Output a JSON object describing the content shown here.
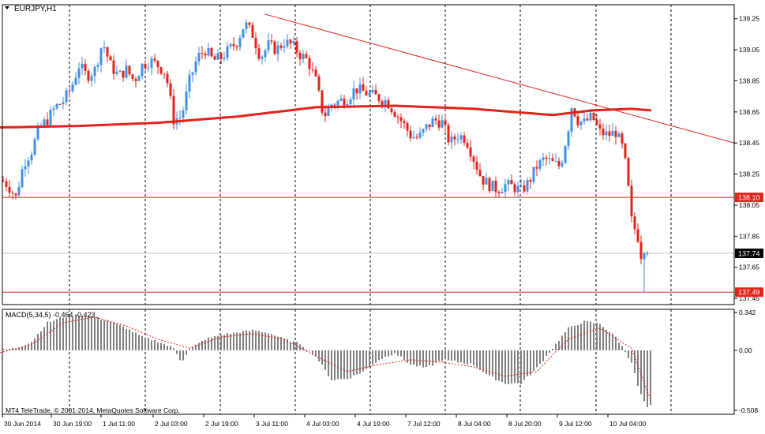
{
  "header": {
    "symbol_label": "EURJPY,H1",
    "menu_arrow": "triangle-down"
  },
  "price_axis": {
    "ticks": [
      "139.25",
      "139.05",
      "138.85",
      "138.65",
      "138.45",
      "138.25",
      "138.05",
      "137.85",
      "137.65",
      "137.45"
    ],
    "tick_values": [
      139.25,
      139.05,
      138.85,
      138.65,
      138.45,
      138.25,
      138.05,
      137.85,
      137.65,
      137.45
    ],
    "range": [
      137.41,
      139.34
    ],
    "markers": [
      {
        "label": "138.10",
        "value": 138.1,
        "color": "#e2231a",
        "text_color": "#ffffff"
      },
      {
        "label": "137.74",
        "value": 137.74,
        "color": "#000000",
        "text_color": "#ffffff"
      },
      {
        "label": "137.49",
        "value": 137.49,
        "color": "#e2231a",
        "text_color": "#ffffff"
      }
    ]
  },
  "time_axis": {
    "labels": [
      "30 Jun 2014",
      "30 Jun 19:00",
      "1 Jul 11:00",
      "2 Jul 03:00",
      "2 Jul 19:00",
      "3 Jul 11:00",
      "4 Jul 03:00",
      "4 Jul 19:00",
      "7 Jul 12:00",
      "8 Jul 04:00",
      "8 Jul 20:00",
      "9 Jul 12:00",
      "10 Jul 04:00"
    ]
  },
  "indicator": {
    "label": "MACD(5,34,5) -0.464 -0.423",
    "ticks": [
      "0.342",
      "0.00",
      "-0.508"
    ],
    "tick_values": [
      0.342,
      0.0,
      -0.508
    ]
  },
  "copyright": "MT4 TeleTrade, © 2001-2014, MetaQuotes Software Corp.",
  "colors": {
    "bull": "#3f8fe6",
    "bear": "#e2231a",
    "ma": "#e2231a",
    "grid": "#000000",
    "histogram": "#808080",
    "signal": "#e2231a"
  },
  "chart_data": [
    {
      "type": "candlestick",
      "title": "EURJPY,H1",
      "series": [
        {
          "name": "price",
          "path": [
            [
              0,
              138.22
            ],
            [
              10,
              138.18
            ],
            [
              20,
              138.1
            ],
            [
              30,
              138.32
            ],
            [
              40,
              138.4
            ],
            [
              50,
              138.55
            ],
            [
              60,
              138.6
            ],
            [
              70,
              138.68
            ],
            [
              80,
              138.72
            ],
            [
              90,
              138.8
            ],
            [
              100,
              138.95
            ],
            [
              110,
              138.88
            ],
            [
              120,
              138.92
            ],
            [
              130,
              139.1
            ],
            [
              140,
              138.95
            ],
            [
              150,
              138.88
            ],
            [
              160,
              138.92
            ],
            [
              170,
              138.85
            ],
            [
              180,
              138.95
            ],
            [
              190,
              138.98
            ],
            [
              200,
              138.95
            ],
            [
              210,
              138.9
            ],
            [
              220,
              138.6
            ],
            [
              230,
              138.62
            ],
            [
              240,
              138.85
            ],
            [
              250,
              139.0
            ],
            [
              260,
              139.05
            ],
            [
              270,
              138.98
            ],
            [
              280,
              139.0
            ],
            [
              290,
              139.05
            ],
            [
              300,
              139.1
            ],
            [
              310,
              139.22
            ],
            [
              320,
              139.15
            ],
            [
              330,
              139.0
            ],
            [
              340,
              139.08
            ],
            [
              350,
              139.05
            ],
            [
              360,
              139.1
            ],
            [
              370,
              139.08
            ],
            [
              380,
              139.02
            ],
            [
              390,
              138.98
            ],
            [
              400,
              138.85
            ],
            [
              410,
              138.62
            ],
            [
              420,
              138.7
            ],
            [
              430,
              138.72
            ],
            [
              440,
              138.74
            ],
            [
              450,
              138.8
            ],
            [
              460,
              138.78
            ],
            [
              470,
              138.76
            ],
            [
              480,
              138.74
            ],
            [
              490,
              138.72
            ],
            [
              500,
              138.65
            ],
            [
              510,
              138.58
            ],
            [
              520,
              138.5
            ],
            [
              530,
              138.48
            ],
            [
              540,
              138.55
            ],
            [
              550,
              138.6
            ],
            [
              560,
              138.58
            ],
            [
              570,
              138.45
            ],
            [
              580,
              138.5
            ],
            [
              590,
              138.48
            ],
            [
              600,
              138.35
            ],
            [
              610,
              138.22
            ],
            [
              620,
              138.18
            ],
            [
              630,
              138.15
            ],
            [
              640,
              138.18
            ],
            [
              650,
              138.17
            ],
            [
              660,
              138.14
            ],
            [
              670,
              138.2
            ],
            [
              680,
              138.3
            ],
            [
              690,
              138.35
            ],
            [
              700,
              138.32
            ],
            [
              710,
              138.3
            ],
            [
              720,
              138.55
            ],
            [
              725,
              138.72
            ],
            [
              730,
              138.6
            ],
            [
              740,
              138.58
            ],
            [
              750,
              138.62
            ],
            [
              760,
              138.52
            ],
            [
              770,
              138.5
            ],
            [
              780,
              138.52
            ],
            [
              790,
              138.4
            ],
            [
              795,
              138.2
            ],
            [
              800,
              137.95
            ],
            [
              810,
              137.82
            ],
            [
              815,
              137.6
            ],
            [
              820,
              137.74
            ]
          ]
        },
        {
          "name": "moving-average",
          "path": [
            [
              0,
              138.55
            ],
            [
              100,
              138.56
            ],
            [
              200,
              138.58
            ],
            [
              300,
              138.62
            ],
            [
              350,
              138.65
            ],
            [
              400,
              138.68
            ],
            [
              500,
              138.69
            ],
            [
              600,
              138.67
            ],
            [
              650,
              138.65
            ],
            [
              700,
              138.63
            ],
            [
              750,
              138.66
            ],
            [
              800,
              138.67
            ],
            [
              825,
              138.66
            ]
          ]
        },
        {
          "name": "trendline",
          "path": [
            [
              335,
              139.28
            ],
            [
              930,
              138.45
            ]
          ]
        }
      ]
    },
    {
      "type": "bar",
      "title": "MACD(5,34,5) -0.464 -0.423",
      "ylim": [
        -0.508,
        0.342
      ],
      "series": [
        {
          "name": "histogram",
          "path": [
            [
              0,
              0.0
            ],
            [
              20,
              0.02
            ],
            [
              40,
              0.08
            ],
            [
              60,
              0.25
            ],
            [
              80,
              0.3
            ],
            [
              100,
              0.32
            ],
            [
              120,
              0.3
            ],
            [
              140,
              0.26
            ],
            [
              160,
              0.2
            ],
            [
              180,
              0.12
            ],
            [
              200,
              0.08
            ],
            [
              220,
              0.02
            ],
            [
              230,
              -0.1
            ],
            [
              240,
              0.01
            ],
            [
              260,
              0.1
            ],
            [
              280,
              0.14
            ],
            [
              300,
              0.16
            ],
            [
              320,
              0.18
            ],
            [
              340,
              0.16
            ],
            [
              360,
              0.1
            ],
            [
              380,
              0.06
            ],
            [
              400,
              -0.05
            ],
            [
              420,
              -0.25
            ],
            [
              440,
              -0.24
            ],
            [
              460,
              -0.18
            ],
            [
              480,
              -0.08
            ],
            [
              500,
              -0.02
            ],
            [
              520,
              -0.12
            ],
            [
              540,
              -0.15
            ],
            [
              560,
              -0.08
            ],
            [
              580,
              -0.1
            ],
            [
              600,
              -0.12
            ],
            [
              620,
              -0.22
            ],
            [
              640,
              -0.28
            ],
            [
              660,
              -0.28
            ],
            [
              680,
              -0.15
            ],
            [
              700,
              0.02
            ],
            [
              720,
              0.2
            ],
            [
              740,
              0.26
            ],
            [
              760,
              0.24
            ],
            [
              780,
              0.12
            ],
            [
              800,
              -0.1
            ],
            [
              810,
              -0.35
            ],
            [
              820,
              -0.49
            ],
            [
              825,
              -0.464
            ]
          ]
        },
        {
          "name": "signal",
          "path": [
            [
              0,
              -0.02
            ],
            [
              40,
              0.05
            ],
            [
              80,
              0.25
            ],
            [
              120,
              0.3
            ],
            [
              160,
              0.22
            ],
            [
              200,
              0.1
            ],
            [
              240,
              0.02
            ],
            [
              280,
              0.12
            ],
            [
              320,
              0.15
            ],
            [
              360,
              0.1
            ],
            [
              400,
              -0.05
            ],
            [
              440,
              -0.18
            ],
            [
              480,
              -0.12
            ],
            [
              520,
              -0.08
            ],
            [
              560,
              -0.1
            ],
            [
              600,
              -0.14
            ],
            [
              640,
              -0.22
            ],
            [
              680,
              -0.18
            ],
            [
              720,
              0.1
            ],
            [
              760,
              0.2
            ],
            [
              800,
              0.02
            ],
            [
              820,
              -0.35
            ],
            [
              825,
              -0.423
            ]
          ]
        }
      ]
    }
  ]
}
